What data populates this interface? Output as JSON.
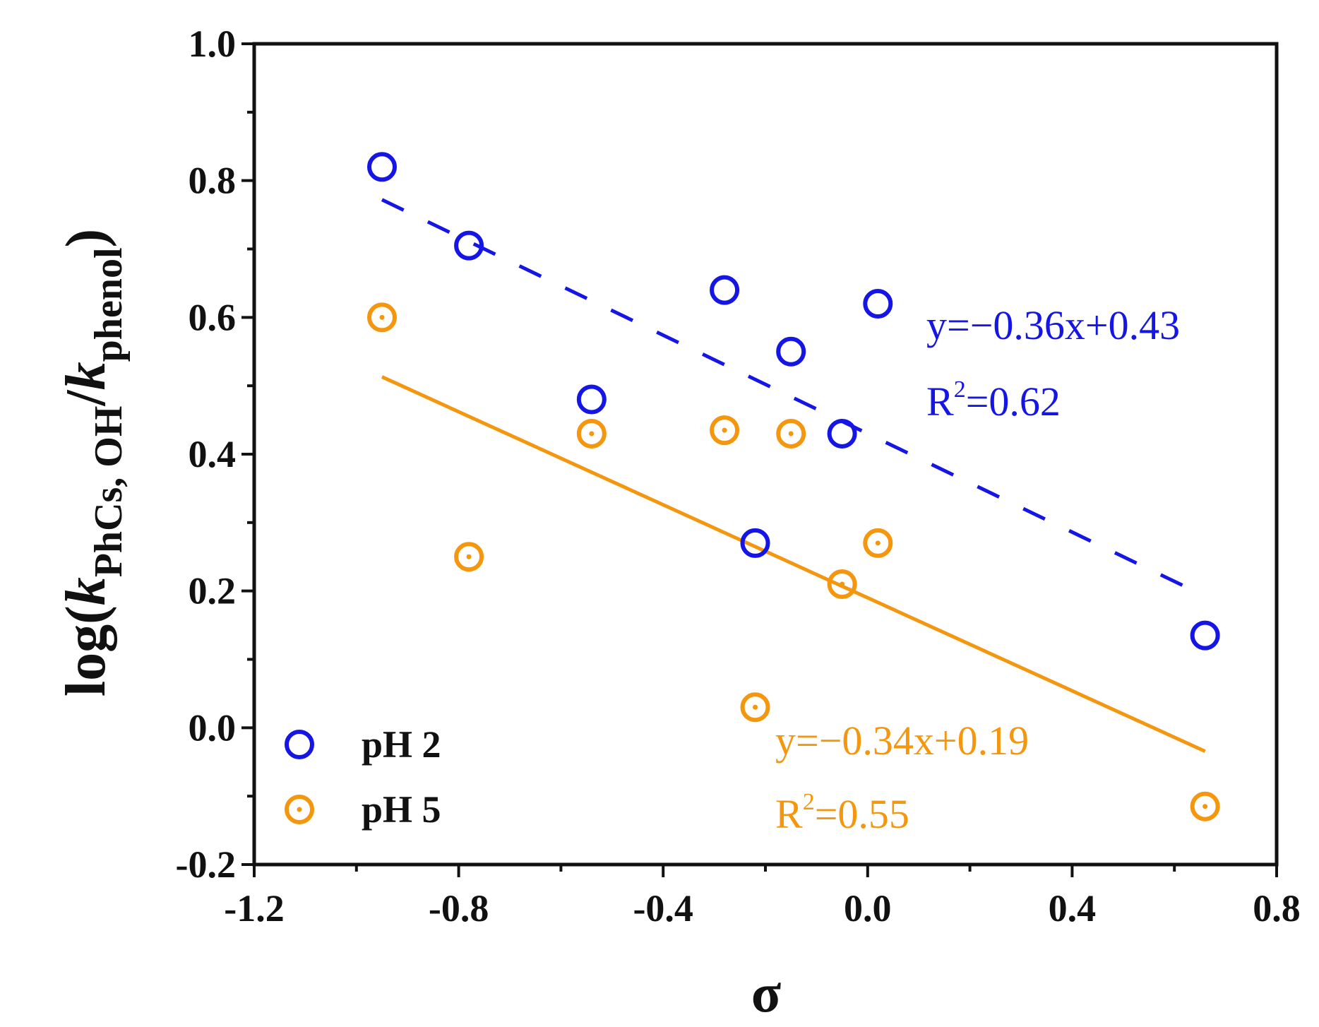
{
  "chart_data": {
    "type": "scatter",
    "title": "",
    "xlabel": "σ",
    "ylabel": {
      "prefix": "log(",
      "k1": "k",
      "sub1": "PhCs, OH",
      "slash": "/",
      "k2": "k",
      "sub2": "phenol",
      "suffix": ")"
    },
    "xlim": [
      -1.2,
      0.8
    ],
    "ylim": [
      -0.2,
      1.0
    ],
    "x_ticks": [
      "-1.2",
      "-0.8",
      "-0.4",
      "0.0",
      "0.4",
      "0.8"
    ],
    "x_tick_values": [
      -1.2,
      -0.8,
      -0.4,
      0.0,
      0.4,
      0.8
    ],
    "y_ticks": [
      "-0.2",
      "0.0",
      "0.2",
      "0.4",
      "0.6",
      "0.8",
      "1.0"
    ],
    "y_tick_values": [
      -0.2,
      0.0,
      0.2,
      0.4,
      0.6,
      0.8,
      1.0
    ],
    "grid": false,
    "legend_position": "bottom-left",
    "series": [
      {
        "name": "pH 2",
        "color": "#1515e6",
        "marker": "open-circle",
        "x": [
          -0.95,
          -0.78,
          -0.54,
          -0.28,
          -0.22,
          -0.15,
          -0.05,
          0.02,
          0.66
        ],
        "y": [
          0.82,
          0.705,
          0.48,
          0.64,
          0.27,
          0.55,
          0.43,
          0.62,
          0.135
        ],
        "fit": {
          "style": "dashed",
          "slope": -0.36,
          "intercept": 0.43,
          "x_range": [
            -0.95,
            0.66
          ],
          "equation": "y=−0.36x+0.43",
          "r2_prefix": "R",
          "r2_sup": "2",
          "r2_value": "=0.62"
        }
      },
      {
        "name": "pH 5",
        "color": "#f5960f",
        "marker": "dotted-circle",
        "x": [
          -0.95,
          -0.78,
          -0.54,
          -0.28,
          -0.22,
          -0.15,
          -0.05,
          0.02,
          0.66
        ],
        "y": [
          0.6,
          0.25,
          0.43,
          0.435,
          0.03,
          0.43,
          0.21,
          0.27,
          -0.115
        ],
        "fit": {
          "style": "solid",
          "slope": -0.34,
          "intercept": 0.19,
          "x_range": [
            -0.95,
            0.66
          ],
          "equation": "y=−0.34x+0.19",
          "r2_prefix": "R",
          "r2_sup": "2",
          "r2_value": "=0.55"
        }
      }
    ]
  }
}
